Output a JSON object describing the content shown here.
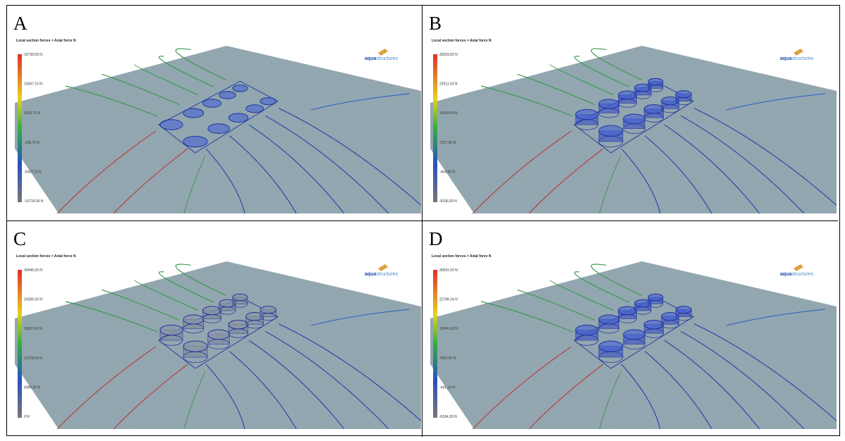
{
  "panels": [
    {
      "label": "A",
      "title": "Local section forces > Axial force N",
      "logo": [
        "aqua",
        "structures"
      ],
      "colorbar_ticks": [
        "15738.50 N",
        "10447.10 N",
        "5155.70 N",
        "-135.70 N",
        "-5427.10 N",
        "-10718.50 N"
      ]
    },
    {
      "label": "B",
      "title": "Local section forces > Axial force N",
      "logo": [
        "aqua",
        "structures"
      ],
      "colorbar_ticks": [
        "30303.03 N",
        "22611.03 N",
        "14918.54 N",
        "7227.06 N",
        "-464.92 N",
        "-8156.90 N"
      ]
    },
    {
      "label": "C",
      "title": "Local section forces > Axial force N",
      "logo": [
        "aqua",
        "structures"
      ],
      "colorbar_ticks": [
        "30445.00 N",
        "24356.00 N",
        "18267.00 N",
        "12178.00 N",
        "6089.00 N",
        "0 N"
      ]
    },
    {
      "label": "D",
      "title": "Local section forces > Axial force N",
      "logo": [
        "aqua",
        "structures"
      ],
      "colorbar_ticks": [
        "30531.50 N",
        "22788.34 N",
        "15045.18 N",
        "7302.02 N",
        "-441.14 N",
        "-8184.30 N"
      ]
    }
  ]
}
